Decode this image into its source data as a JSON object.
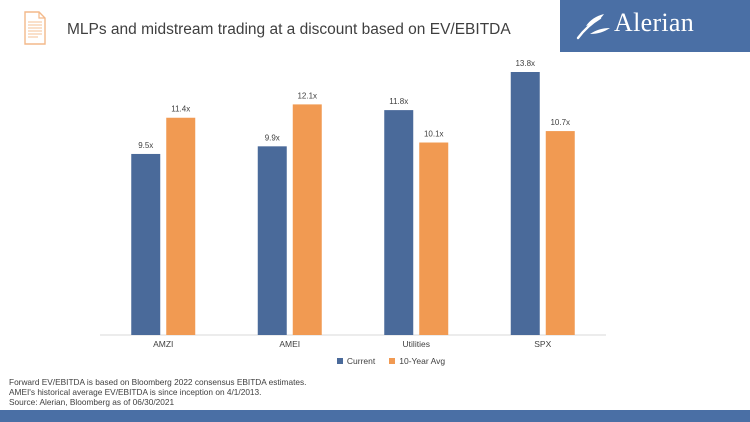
{
  "header": {
    "title": "MLPs and midstream trading at a discount based on EV/EBITDA",
    "logo_text": "Alerian"
  },
  "colors": {
    "current": "#4a6a9a",
    "avg": "#f19a52",
    "brand": "#4a6fa5",
    "icon": "#f3b98a"
  },
  "icons": {
    "document": "document-icon",
    "logo_mark": "alerian-leaf-icon"
  },
  "chart_data": {
    "type": "bar",
    "categories": [
      "AMZI",
      "AMEI",
      "Utilities",
      "SPX"
    ],
    "series": [
      {
        "name": "Current",
        "values": [
          9.5,
          9.9,
          11.8,
          13.8
        ],
        "labels": [
          "9.5x",
          "9.9x",
          "11.8x",
          "13.8x"
        ]
      },
      {
        "name": "10-Year Avg",
        "values": [
          11.4,
          12.1,
          10.1,
          10.7
        ],
        "labels": [
          "11.4x",
          "12.1x",
          "10.1x",
          "10.7x"
        ]
      }
    ],
    "ylim": [
      0,
      13.8
    ],
    "grid": false,
    "legend_position": "bottom"
  },
  "footnotes": [
    "Forward EV/EBITDA is based on Bloomberg 2022 consensus EBITDA estimates.",
    "AMEI's historical average EV/EBITDA is since inception on 4/1/2013.",
    "Source: Alerian, Bloomberg as of 06/30/2021"
  ]
}
